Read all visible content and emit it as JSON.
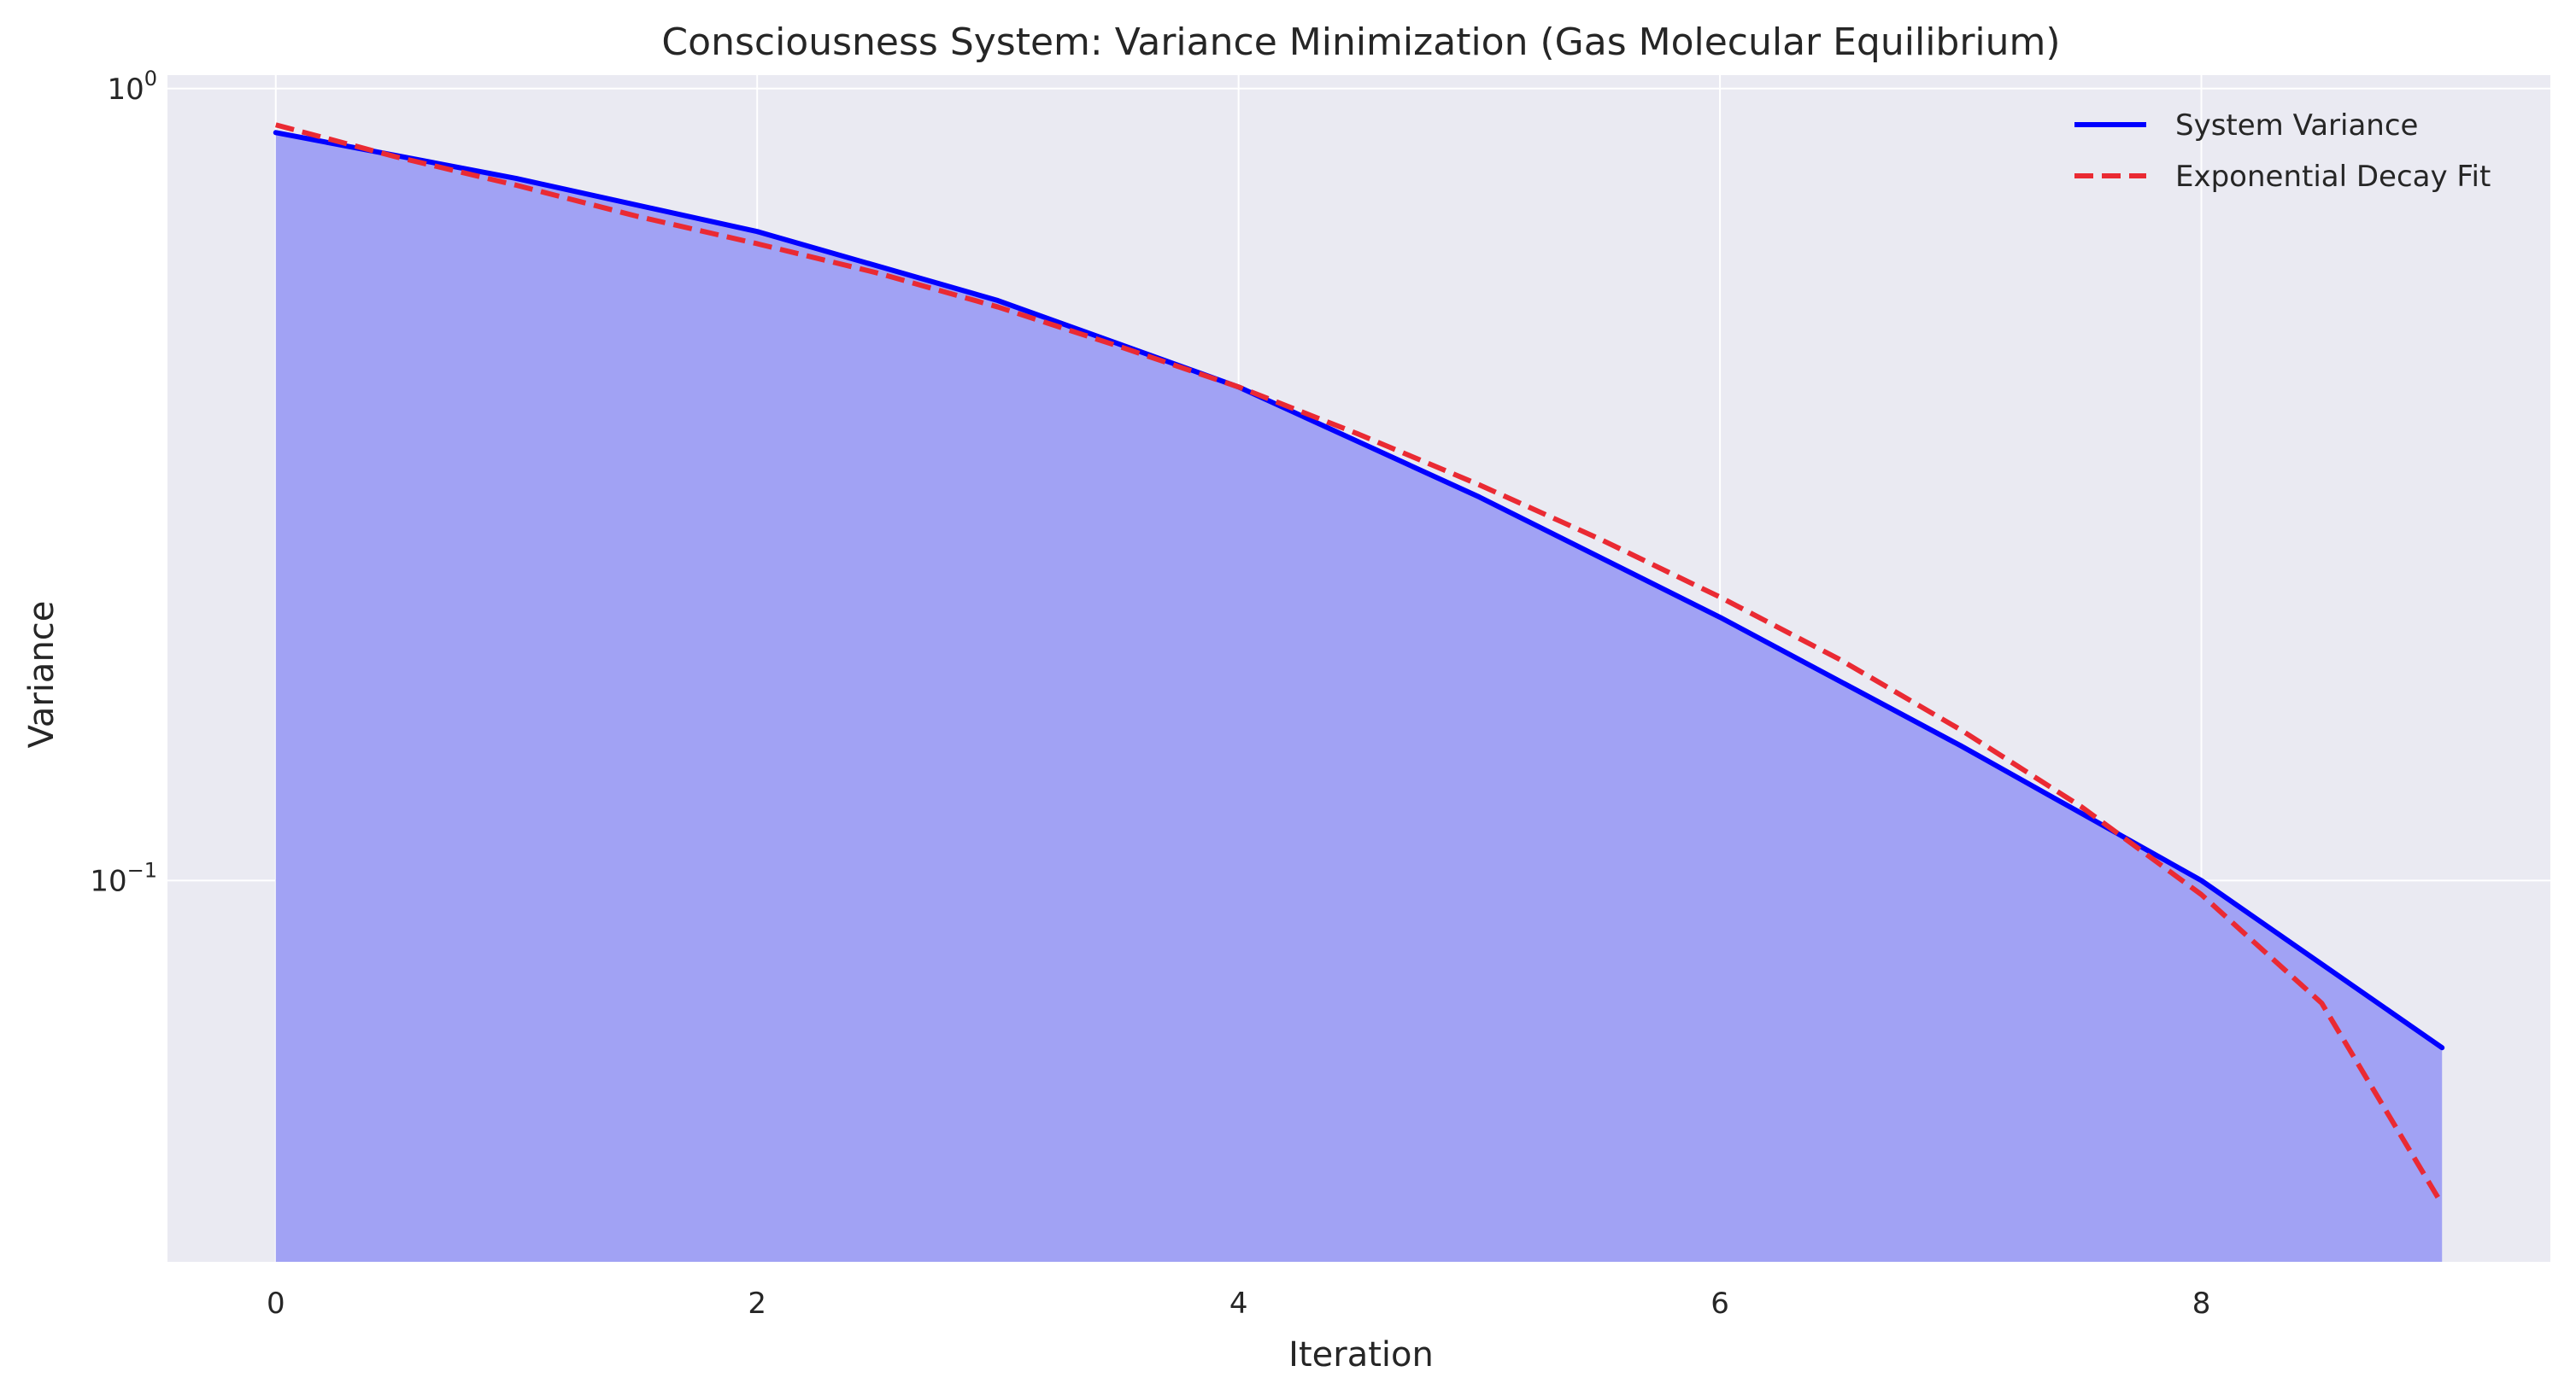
{
  "chart_data": {
    "type": "line",
    "title": "Consciousness System: Variance Minimization (Gas Molecular Equilibrium)",
    "xlabel": "Iteration",
    "ylabel": "Variance",
    "x_scale": "linear",
    "y_scale": "log",
    "xlim": [
      -0.45,
      9.45
    ],
    "ylim": [
      0.033,
      1.04
    ],
    "x_ticks": [
      0,
      2,
      4,
      6,
      8
    ],
    "x_tick_labels": [
      "0",
      "2",
      "4",
      "6",
      "8"
    ],
    "y_ticks": [
      0.1,
      1
    ],
    "y_tick_labels": [
      {
        "base": "10",
        "exp": "−1"
      },
      {
        "base": "10",
        "exp": "0"
      }
    ],
    "grid": true,
    "legend": "top-right",
    "series": [
      {
        "name": "System Variance",
        "style": "solid",
        "color": "#0000ff",
        "fill": "#a1a2f4",
        "x": [
          0,
          1,
          2,
          3,
          4,
          5,
          6,
          7,
          8,
          9
        ],
        "values": [
          0.88,
          0.77,
          0.66,
          0.54,
          0.42,
          0.305,
          0.215,
          0.148,
          0.1,
          0.0615
        ]
      },
      {
        "name": "Exponential Decay Fit",
        "style": "dashed",
        "color": "#ea2a33",
        "x": [
          0,
          0.5,
          1,
          1.5,
          2,
          2.5,
          3,
          3.5,
          4,
          4.5,
          5,
          5.5,
          6,
          6.5,
          7,
          7.5,
          8,
          8.5,
          9
        ],
        "values": [
          0.9,
          0.82,
          0.755,
          0.69,
          0.637,
          0.585,
          0.53,
          0.473,
          0.42,
          0.366,
          0.316,
          0.27,
          0.228,
          0.19,
          0.155,
          0.124,
          0.096,
          0.07,
          0.039
        ]
      }
    ]
  }
}
